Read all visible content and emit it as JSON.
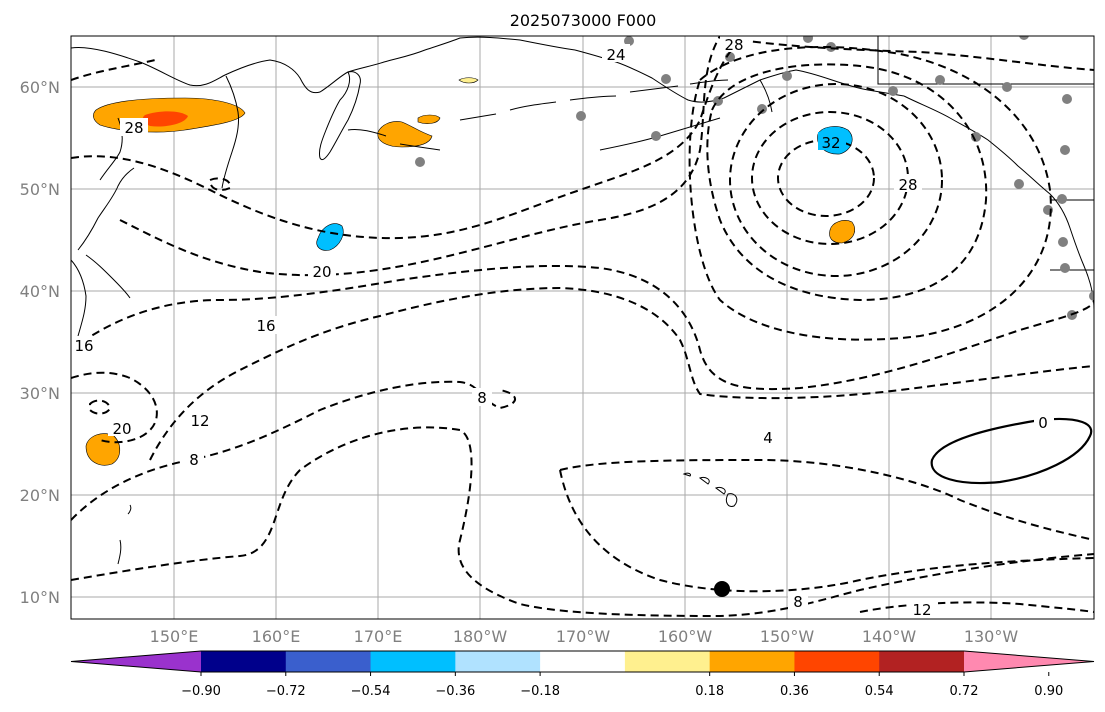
{
  "title": "2025073000 F000",
  "lat_ticks": [
    "60°N",
    "50°N",
    "40°N",
    "30°N",
    "20°N",
    "10°N"
  ],
  "lon_ticks": [
    "150°E",
    "160°E",
    "170°E",
    "180°W",
    "170°W",
    "160°W",
    "150°W",
    "140°W",
    "130°W"
  ],
  "colorbar": {
    "ticks": [
      "−0.90",
      "−0.72",
      "−0.54",
      "−0.36",
      "−0.18",
      "0.18",
      "0.36",
      "0.54",
      "0.72",
      "0.90"
    ],
    "colors": [
      "#9a32cd",
      "#00008b",
      "#3a5fcd",
      "#00bfff",
      "#b0e2ff",
      "#ffffff",
      "#fff08f",
      "#ffa500",
      "#ff4500",
      "#b22222",
      "#ff89b0"
    ]
  },
  "contour_labels": [
    "24",
    "28",
    "28",
    "32",
    "28",
    "20",
    "16",
    "16",
    "12",
    "20",
    "8",
    "8",
    "4",
    "0",
    "8",
    "12"
  ],
  "colors": {
    "shade_orange": "#ffa500",
    "shade_red": "#ff4500",
    "shade_blue": "#00bfff",
    "shade_yellow": "#fff08f",
    "station": "#808080"
  }
}
